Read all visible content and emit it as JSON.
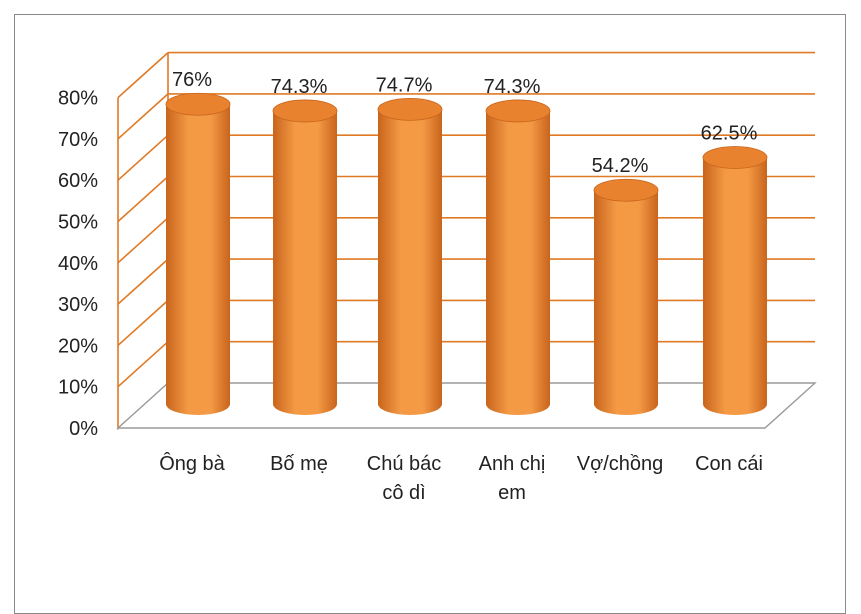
{
  "chart_data": {
    "type": "bar",
    "style": "3d-cylinder",
    "categories": [
      [
        "Ông bà"
      ],
      [
        "Bố mẹ"
      ],
      [
        "Chú bác",
        "cô dì"
      ],
      [
        "Anh chị",
        "em"
      ],
      [
        "Vợ/chồng"
      ],
      [
        "Con cái"
      ]
    ],
    "values": [
      76,
      74.3,
      74.7,
      74.3,
      54.2,
      62.5
    ],
    "data_labels": [
      "76%",
      "74.3%",
      "74.7%",
      "74.3%",
      "54.2%",
      "62.5%"
    ],
    "yticks": [
      "0%",
      "10%",
      "20%",
      "30%",
      "40%",
      "50%",
      "60%",
      "70%",
      "80%"
    ],
    "ylim": [
      0,
      80
    ],
    "grid": true,
    "legend": "none",
    "title": "",
    "xlabel": "",
    "ylabel": "",
    "colors": {
      "bar_fill": "#f49a45",
      "bar_dark": "#c8641c",
      "bar_top": "#e8822f",
      "grid": "#e07a25",
      "floor": "#9a9a9a"
    }
  }
}
